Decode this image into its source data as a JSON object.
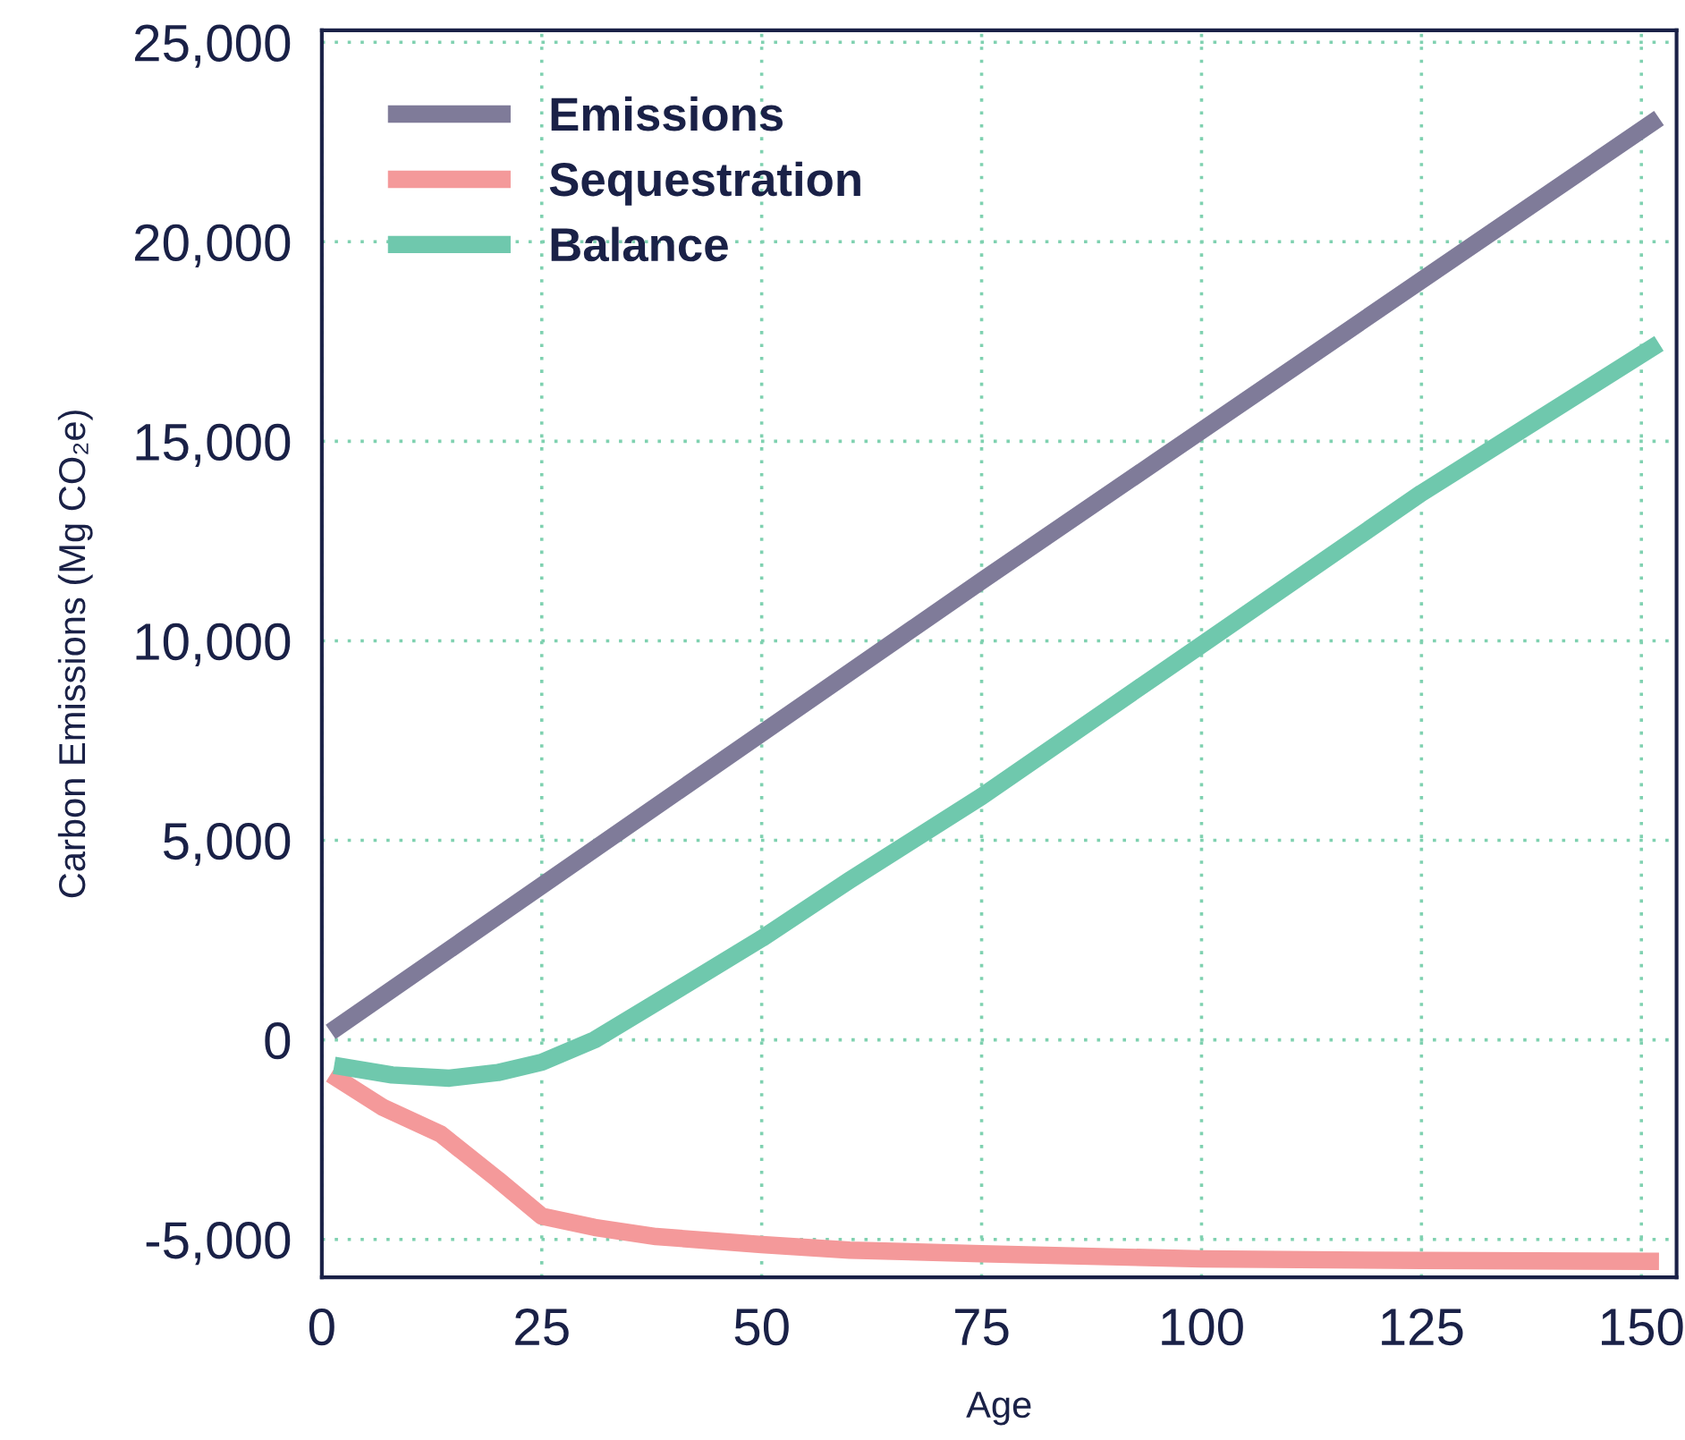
{
  "chart_data": {
    "type": "line",
    "xlabel": "Age",
    "ylabel": "Carbon Emissions (Mg CO₂e)",
    "xlim": [
      0,
      154
    ],
    "ylim": [
      -5950,
      25300
    ],
    "xticks": [
      0,
      25,
      50,
      75,
      100,
      125,
      150
    ],
    "yticks": [
      {
        "value": -5000,
        "label": "-5,000"
      },
      {
        "value": 0,
        "label": "0"
      },
      {
        "value": 5000,
        "label": "5,000"
      },
      {
        "value": 10000,
        "label": "10,000"
      },
      {
        "value": 15000,
        "label": "15,000"
      },
      {
        "value": 20000,
        "label": "20,000"
      },
      {
        "value": 25000,
        "label": "25,000"
      }
    ],
    "grid": true,
    "legend": "top left",
    "line_style": "solid",
    "marker": "none",
    "series": [
      {
        "name": "Emissions",
        "color": "#7f7b99",
        "x": [
          1,
          75,
          152
        ],
        "values": [
          200,
          11500,
          23100
        ]
      },
      {
        "name": "Sequestration",
        "color": "#f4999a",
        "x": [
          1,
          7,
          13.5,
          20,
          25,
          31,
          38,
          50,
          60,
          75,
          100,
          125,
          152
        ],
        "values": [
          -860,
          -1700,
          -2360,
          -3500,
          -4420,
          -4700,
          -4930,
          -5130,
          -5270,
          -5360,
          -5490,
          -5530,
          -5550
        ]
      },
      {
        "name": "Balance",
        "color": "#6fc8ad",
        "x": [
          1.4,
          8,
          14.5,
          20,
          25,
          31,
          40,
          50,
          60,
          75,
          100,
          125,
          152
        ],
        "values": [
          -640,
          -880,
          -960,
          -820,
          -560,
          0,
          1200,
          2540,
          4000,
          6100,
          9900,
          13700,
          17450
        ]
      }
    ]
  }
}
